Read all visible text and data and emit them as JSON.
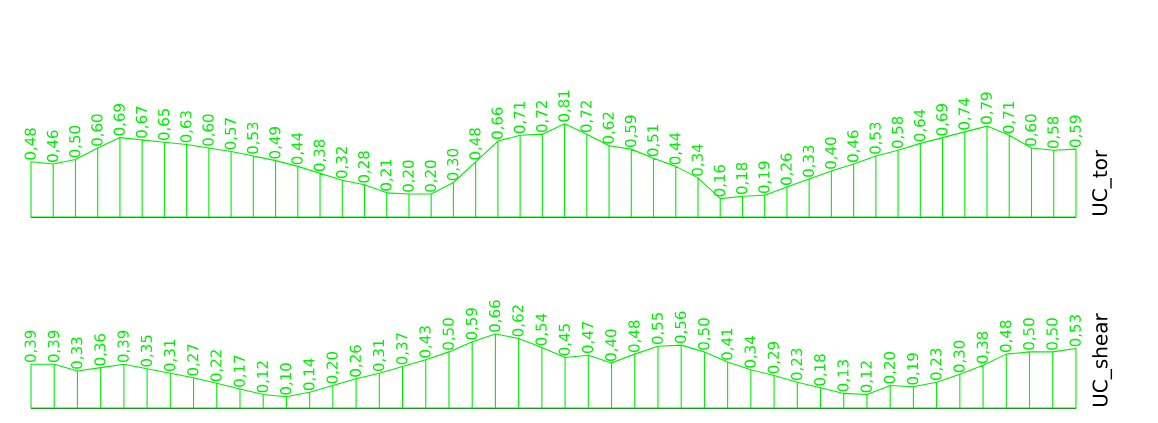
{
  "chart_data": [
    {
      "type": "area",
      "ylabel": "UC_tor",
      "color": "#00ee00",
      "categories": [
        null,
        null,
        null,
        null,
        null,
        null,
        null,
        null,
        null,
        null,
        null,
        null,
        null,
        null,
        null,
        null,
        null,
        null,
        null,
        null,
        null,
        null,
        null,
        null,
        null,
        null,
        null,
        null,
        null,
        null,
        null,
        null,
        null,
        null,
        null,
        null,
        null,
        null,
        null,
        null,
        null,
        null,
        null,
        null,
        null,
        null,
        null,
        null
      ],
      "values": [
        0.48,
        0.46,
        0.5,
        0.6,
        0.69,
        0.67,
        0.65,
        0.63,
        0.6,
        0.57,
        0.53,
        0.49,
        0.44,
        0.38,
        0.32,
        0.28,
        0.21,
        0.2,
        0.2,
        0.3,
        0.48,
        0.66,
        0.71,
        0.72,
        0.81,
        0.72,
        0.62,
        0.59,
        0.51,
        0.44,
        0.34,
        0.16,
        0.18,
        0.19,
        0.26,
        0.33,
        0.4,
        0.46,
        0.53,
        0.58,
        0.64,
        0.69,
        0.74,
        0.79,
        0.71,
        0.6,
        0.58,
        0.59
      ],
      "value_labels": [
        "0,48",
        "0,46",
        "0,50",
        "0,60",
        "0,69",
        "0,67",
        "0,65",
        "0,63",
        "0,60",
        "0,57",
        "0,53",
        "0,49",
        "0,44",
        "0,38",
        "0,32",
        "0,28",
        "0,21",
        "0,20",
        "0,20",
        "0,30",
        "0,48",
        "0,66",
        "0,71",
        "0,72",
        "0,81",
        "0,72",
        "0,62",
        "0,59",
        "0,51",
        "0,44",
        "0,34",
        "0,16",
        "0,18",
        "0,19",
        "0,26",
        "0,33",
        "0,40",
        "0,46",
        "0,53",
        "0,58",
        "0,64",
        "0,69",
        "0,74",
        "0,79",
        "0,71",
        "0,60",
        "0,58",
        "0,59"
      ]
    },
    {
      "type": "area",
      "ylabel": "UC_shear",
      "color": "#00ee00",
      "categories": [
        null,
        null,
        null,
        null,
        null,
        null,
        null,
        null,
        null,
        null,
        null,
        null,
        null,
        null,
        null,
        null,
        null,
        null,
        null,
        null,
        null,
        null,
        null,
        null,
        null,
        null,
        null,
        null,
        null,
        null,
        null,
        null,
        null,
        null,
        null,
        null,
        null,
        null,
        null,
        null,
        null,
        null,
        null,
        null,
        null,
        null
      ],
      "values": [
        0.39,
        0.39,
        0.33,
        0.36,
        0.39,
        0.35,
        0.31,
        0.27,
        0.22,
        0.17,
        0.12,
        0.1,
        0.14,
        0.2,
        0.26,
        0.31,
        0.37,
        0.43,
        0.5,
        0.59,
        0.66,
        0.62,
        0.54,
        0.45,
        0.47,
        0.4,
        0.48,
        0.55,
        0.56,
        0.5,
        0.41,
        0.34,
        0.29,
        0.23,
        0.18,
        0.13,
        0.12,
        0.2,
        0.19,
        0.23,
        0.3,
        0.38,
        0.48,
        0.5,
        0.5,
        0.53
      ],
      "value_labels": [
        "0,39",
        "0,39",
        "0,33",
        "0,36",
        "0,39",
        "0,35",
        "0,31",
        "0,27",
        "0,22",
        "0,17",
        "0,12",
        "0,10",
        "0,14",
        "0,20",
        "0,26",
        "0,31",
        "0,37",
        "0,43",
        "0,50",
        "0,59",
        "0,66",
        "0,62",
        "0,54",
        "0,45",
        "0,47",
        "0,40",
        "0,48",
        "0,55",
        "0,56",
        "0,50",
        "0,41",
        "0,34",
        "0,29",
        "0,23",
        "0,18",
        "0,13",
        "0,12",
        "0,20",
        "0,19",
        "0,23",
        "0,30",
        "0,38",
        "0,48",
        "0,50",
        "0,50",
        "0,53"
      ]
    }
  ]
}
